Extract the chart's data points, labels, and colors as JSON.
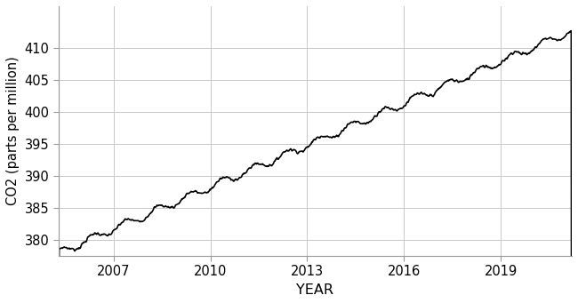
{
  "title": "",
  "xlabel": "YEAR",
  "ylabel": "CO2 (parts per million)",
  "line_color": "#000000",
  "line_width": 1.2,
  "background_color": "#ffffff",
  "grid_color": "#c8c8c8",
  "xlim": [
    2005.3,
    2021.2
  ],
  "ylim": [
    377.5,
    416.5
  ],
  "yticks": [
    380,
    385,
    390,
    395,
    400,
    405,
    410
  ],
  "xticks": [
    2007,
    2010,
    2013,
    2016,
    2019
  ],
  "tick_fontsize": 10.5,
  "label_fontsize": 11.5
}
